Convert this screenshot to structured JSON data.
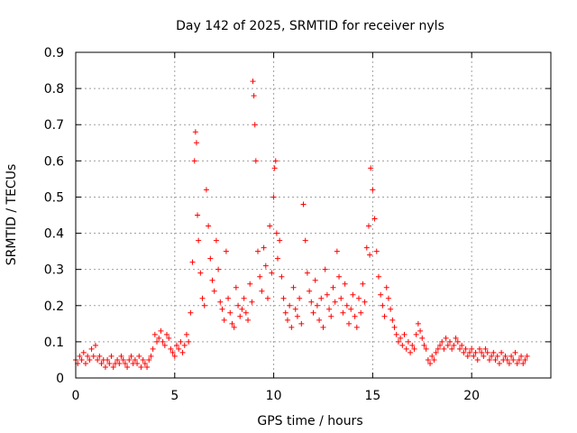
{
  "chart_data": {
    "type": "scatter",
    "title": "Day 142 of 2025, SRMTID for receiver nyls",
    "xlabel": "GPS time / hours",
    "ylabel": "SRMTID / TECUs",
    "xlim": [
      0,
      24
    ],
    "ylim": [
      0,
      0.9
    ],
    "xticks": [
      0,
      5,
      10,
      15,
      20
    ],
    "xtick_labels": [
      "0",
      "5",
      "10",
      "15",
      "20"
    ],
    "yticks": [
      0,
      0.1,
      0.2,
      0.3,
      0.4,
      0.5,
      0.6,
      0.7,
      0.8,
      0.9
    ],
    "ytick_labels": [
      "0",
      "0.1",
      "0.2",
      "0.3",
      "0.4",
      "0.5",
      "0.6",
      "0.7",
      "0.8",
      "0.9"
    ],
    "grid": true,
    "marker": "+",
    "color": "#ff0000",
    "series": [
      {
        "name": "SRMTID",
        "x": [
          0.0,
          0.1,
          0.2,
          0.3,
          0.4,
          0.5,
          0.6,
          0.7,
          0.8,
          0.9,
          1.0,
          1.1,
          1.2,
          1.3,
          1.4,
          1.5,
          1.6,
          1.7,
          1.8,
          1.9,
          2.0,
          2.1,
          2.2,
          2.3,
          2.4,
          2.5,
          2.6,
          2.7,
          2.8,
          2.9,
          3.0,
          3.1,
          3.2,
          3.3,
          3.4,
          3.5,
          3.6,
          3.7,
          3.8,
          3.9,
          4.0,
          4.1,
          4.2,
          4.3,
          4.4,
          4.5,
          4.6,
          4.7,
          4.8,
          4.9,
          5.0,
          5.1,
          5.2,
          5.3,
          5.4,
          5.5,
          5.6,
          5.7,
          5.8,
          5.9,
          6.0,
          6.05,
          6.1,
          6.15,
          6.2,
          6.3,
          6.4,
          6.5,
          6.6,
          6.7,
          6.8,
          6.9,
          7.0,
          7.1,
          7.2,
          7.3,
          7.4,
          7.5,
          7.6,
          7.7,
          7.8,
          7.9,
          8.0,
          8.1,
          8.2,
          8.3,
          8.4,
          8.5,
          8.6,
          8.7,
          8.8,
          8.9,
          8.95,
          9.0,
          9.05,
          9.1,
          9.2,
          9.3,
          9.4,
          9.5,
          9.6,
          9.7,
          9.8,
          9.9,
          10.0,
          10.05,
          10.1,
          10.15,
          10.2,
          10.3,
          10.4,
          10.5,
          10.6,
          10.7,
          10.8,
          10.9,
          11.0,
          11.1,
          11.2,
          11.3,
          11.4,
          11.5,
          11.6,
          11.7,
          11.8,
          11.9,
          12.0,
          12.1,
          12.2,
          12.3,
          12.4,
          12.5,
          12.6,
          12.7,
          12.8,
          12.9,
          13.0,
          13.1,
          13.2,
          13.3,
          13.4,
          13.5,
          13.6,
          13.7,
          13.8,
          13.9,
          14.0,
          14.1,
          14.2,
          14.3,
          14.4,
          14.5,
          14.6,
          14.7,
          14.8,
          14.85,
          14.9,
          15.0,
          15.1,
          15.2,
          15.3,
          15.4,
          15.5,
          15.6,
          15.7,
          15.8,
          15.9,
          16.0,
          16.1,
          16.2,
          16.3,
          16.4,
          16.5,
          16.6,
          16.7,
          16.8,
          16.9,
          17.0,
          17.1,
          17.2,
          17.3,
          17.4,
          17.5,
          17.6,
          17.7,
          17.8,
          17.9,
          18.0,
          18.1,
          18.2,
          18.3,
          18.4,
          18.5,
          18.6,
          18.7,
          18.8,
          18.9,
          19.0,
          19.1,
          19.2,
          19.3,
          19.4,
          19.5,
          19.6,
          19.7,
          19.8,
          19.9,
          20.0,
          20.1,
          20.2,
          20.3,
          20.4,
          20.5,
          20.6,
          20.7,
          20.8,
          20.9,
          21.0,
          21.1,
          21.2,
          21.3,
          21.4,
          21.5,
          21.6,
          21.7,
          21.8,
          21.9,
          22.0,
          22.1,
          22.2,
          22.3,
          22.4,
          22.5,
          22.6,
          22.7,
          22.8
        ],
        "y": [
          0.05,
          0.04,
          0.06,
          0.05,
          0.07,
          0.04,
          0.06,
          0.05,
          0.08,
          0.06,
          0.09,
          0.05,
          0.06,
          0.04,
          0.05,
          0.03,
          0.05,
          0.04,
          0.06,
          0.03,
          0.04,
          0.05,
          0.04,
          0.06,
          0.05,
          0.04,
          0.03,
          0.05,
          0.06,
          0.04,
          0.05,
          0.04,
          0.06,
          0.03,
          0.05,
          0.04,
          0.03,
          0.05,
          0.06,
          0.08,
          0.12,
          0.1,
          0.11,
          0.13,
          0.1,
          0.09,
          0.12,
          0.11,
          0.08,
          0.07,
          0.06,
          0.09,
          0.08,
          0.1,
          0.07,
          0.09,
          0.12,
          0.1,
          0.18,
          0.32,
          0.6,
          0.68,
          0.65,
          0.45,
          0.38,
          0.29,
          0.22,
          0.2,
          0.52,
          0.42,
          0.33,
          0.27,
          0.24,
          0.38,
          0.3,
          0.21,
          0.19,
          0.16,
          0.35,
          0.22,
          0.18,
          0.15,
          0.14,
          0.25,
          0.2,
          0.17,
          0.19,
          0.22,
          0.18,
          0.16,
          0.26,
          0.21,
          0.82,
          0.78,
          0.7,
          0.6,
          0.35,
          0.28,
          0.24,
          0.36,
          0.31,
          0.22,
          0.42,
          0.29,
          0.5,
          0.58,
          0.6,
          0.4,
          0.33,
          0.38,
          0.28,
          0.22,
          0.18,
          0.16,
          0.2,
          0.14,
          0.25,
          0.19,
          0.17,
          0.22,
          0.15,
          0.48,
          0.38,
          0.29,
          0.24,
          0.21,
          0.18,
          0.27,
          0.2,
          0.16,
          0.22,
          0.14,
          0.3,
          0.23,
          0.19,
          0.17,
          0.25,
          0.21,
          0.35,
          0.28,
          0.22,
          0.18,
          0.26,
          0.2,
          0.15,
          0.19,
          0.23,
          0.17,
          0.14,
          0.22,
          0.18,
          0.26,
          0.21,
          0.36,
          0.42,
          0.34,
          0.58,
          0.52,
          0.44,
          0.35,
          0.28,
          0.23,
          0.2,
          0.17,
          0.25,
          0.22,
          0.19,
          0.16,
          0.14,
          0.12,
          0.1,
          0.11,
          0.09,
          0.12,
          0.08,
          0.1,
          0.07,
          0.09,
          0.08,
          0.12,
          0.15,
          0.13,
          0.11,
          0.09,
          0.08,
          0.05,
          0.04,
          0.06,
          0.05,
          0.07,
          0.08,
          0.09,
          0.1,
          0.08,
          0.11,
          0.09,
          0.1,
          0.08,
          0.09,
          0.11,
          0.1,
          0.08,
          0.09,
          0.07,
          0.08,
          0.06,
          0.07,
          0.08,
          0.06,
          0.07,
          0.05,
          0.08,
          0.07,
          0.06,
          0.08,
          0.07,
          0.05,
          0.06,
          0.07,
          0.05,
          0.06,
          0.04,
          0.07,
          0.05,
          0.06,
          0.05,
          0.04,
          0.06,
          0.05,
          0.07,
          0.04,
          0.05,
          0.06,
          0.04,
          0.05,
          0.06
        ]
      }
    ]
  }
}
